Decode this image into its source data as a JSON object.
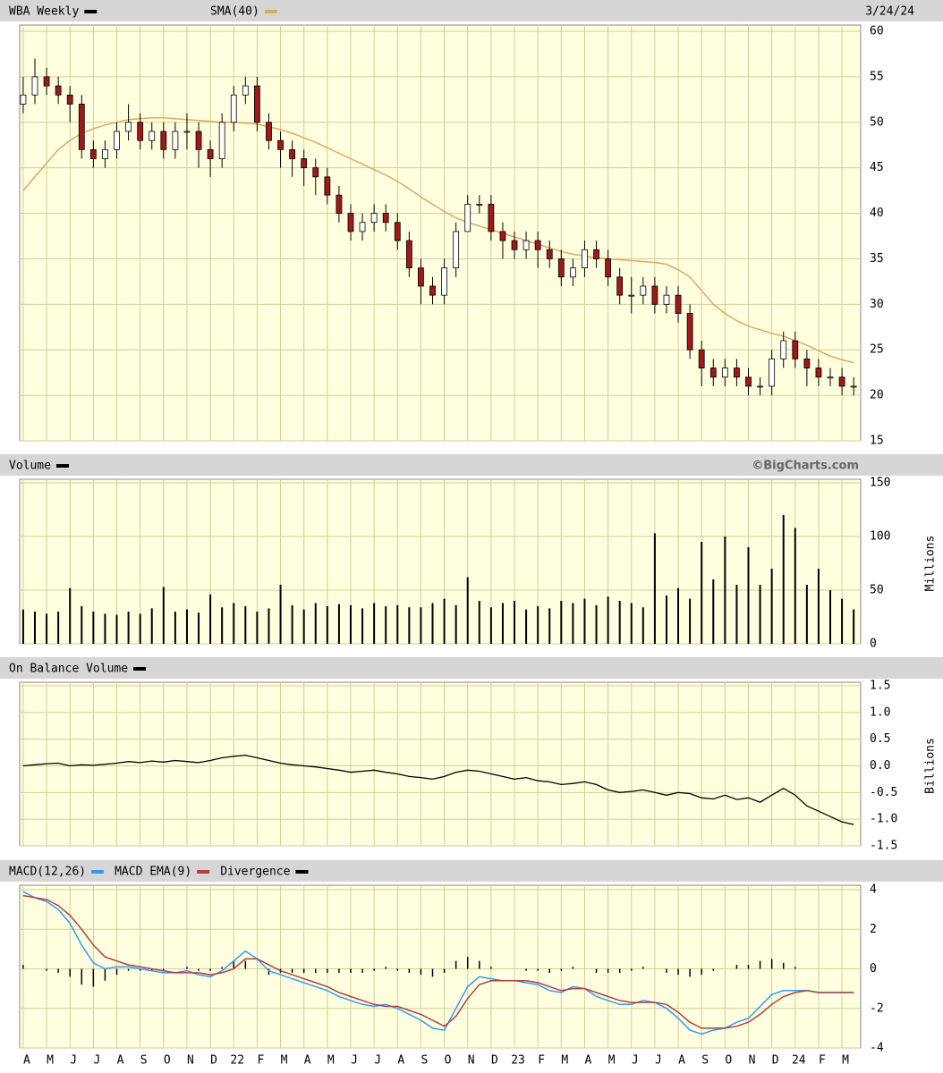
{
  "chart_data": [
    {
      "type": "candlestick",
      "title": "WBA Weekly",
      "date": "3/24/24",
      "color": "#000000",
      "up_color": "#ffffff",
      "down_color": "#a01818",
      "open": [
        52,
        53,
        55,
        54,
        53,
        52,
        47,
        46,
        47,
        49,
        50,
        48,
        49,
        47,
        49,
        49,
        47,
        46,
        50,
        53,
        54,
        50,
        48,
        47,
        46,
        45,
        44,
        42,
        40,
        38,
        39,
        40,
        39,
        37,
        34,
        32,
        31,
        34,
        38,
        41,
        41,
        38,
        37,
        36,
        37,
        36,
        35,
        33,
        34,
        36,
        35,
        33,
        31,
        31,
        32,
        30,
        31,
        29,
        25,
        23,
        22,
        23,
        22,
        21,
        21,
        24,
        26,
        24,
        23,
        22,
        22,
        21
      ],
      "high": [
        55,
        57,
        56,
        55,
        54,
        53,
        48,
        48,
        50,
        52,
        51,
        50,
        50,
        50,
        51,
        50,
        48,
        51,
        54,
        55,
        55,
        51,
        49,
        48,
        47,
        46,
        45,
        43,
        41,
        40,
        41,
        41,
        40,
        38,
        35,
        33,
        35,
        39,
        42,
        42,
        42,
        39,
        38,
        38,
        38,
        37,
        36,
        35,
        37,
        37,
        36,
        34,
        33,
        33,
        33,
        32,
        32,
        30,
        26,
        24,
        24,
        24,
        23,
        22,
        25,
        27,
        27,
        25,
        24,
        23,
        23,
        22
      ],
      "low": [
        51,
        52,
        53,
        52,
        50,
        46,
        45,
        45,
        46,
        48,
        47,
        47,
        46,
        46,
        47,
        45,
        44,
        45,
        49,
        52,
        49,
        47,
        45,
        44,
        43,
        42,
        41,
        39,
        37,
        37,
        38,
        38,
        36,
        33,
        30,
        30,
        30,
        33,
        38,
        40,
        37,
        35,
        35,
        35,
        34,
        34,
        32,
        32,
        33,
        34,
        32,
        30,
        29,
        30,
        29,
        29,
        28,
        24,
        21,
        21,
        21,
        21,
        20,
        20,
        20,
        23,
        23,
        21,
        21,
        21,
        20,
        20
      ],
      "close": [
        53,
        55,
        54,
        53,
        52,
        47,
        46,
        47,
        49,
        50,
        48,
        49,
        47,
        49,
        49,
        47,
        46,
        50,
        53,
        54,
        50,
        48,
        47,
        46,
        45,
        44,
        42,
        40,
        38,
        39,
        40,
        39,
        37,
        34,
        32,
        31,
        34,
        38,
        41,
        41,
        38,
        37,
        36,
        37,
        36,
        35,
        33,
        34,
        36,
        35,
        33,
        31,
        31,
        32,
        30,
        31,
        29,
        25,
        23,
        22,
        23,
        22,
        21,
        21,
        24,
        26,
        24,
        23,
        22,
        22,
        21,
        21
      ],
      "overlay": {
        "name": "SMA(40)",
        "color": "#e0a860",
        "values": [
          42.5,
          44,
          45.5,
          47,
          48,
          48.8,
          49.3,
          49.7,
          50,
          50.3,
          50.4,
          50.5,
          50.5,
          50.4,
          50.3,
          50.2,
          50.1,
          50,
          50,
          49.9,
          49.8,
          49.5,
          49.2,
          48.8,
          48.3,
          47.8,
          47.2,
          46.6,
          46,
          45.4,
          44.8,
          44.2,
          43.5,
          42.7,
          41.8,
          41,
          40.2,
          39.5,
          39,
          38.6,
          38.2,
          37.8,
          37.4,
          37,
          36.6,
          36.2,
          35.8,
          35.5,
          35.3,
          35.1,
          35,
          34.9,
          34.8,
          34.7,
          34.6,
          34.4,
          33.8,
          33,
          31.5,
          30,
          29,
          28.2,
          27.6,
          27.2,
          26.8,
          26.5,
          26,
          25.5,
          24.9,
          24.3,
          23.9,
          23.6
        ]
      },
      "ylim": [
        15,
        60
      ],
      "yticks": [
        15,
        20,
        25,
        30,
        35,
        40,
        45,
        50,
        55,
        60
      ],
      "grid": true
    },
    {
      "type": "bar",
      "title": "Volume",
      "source": "©BigCharts.com",
      "y_label": "Millions",
      "color": "#000000",
      "values": [
        32,
        30,
        28,
        30,
        52,
        35,
        30,
        28,
        27,
        30,
        28,
        33,
        53,
        30,
        32,
        29,
        46,
        34,
        38,
        35,
        30,
        33,
        55,
        36,
        32,
        38,
        35,
        37,
        36,
        33,
        38,
        35,
        36,
        34,
        34,
        38,
        42,
        36,
        62,
        40,
        34,
        38,
        40,
        32,
        35,
        33,
        40,
        38,
        42,
        36,
        44,
        40,
        38,
        34,
        103,
        45,
        52,
        42,
        95,
        60,
        100,
        55,
        90,
        55,
        70,
        120,
        108,
        55,
        70,
        50,
        42,
        32
      ],
      "ylim": [
        0,
        150
      ],
      "yticks": [
        0,
        50,
        100,
        150
      ],
      "grid": true
    },
    {
      "type": "line",
      "title": "On Balance Volume",
      "y_label": "Billions",
      "color": "#000000",
      "values": [
        0,
        0.02,
        0.04,
        0.05,
        0,
        0.02,
        0.01,
        0.03,
        0.05,
        0.08,
        0.06,
        0.09,
        0.07,
        0.1,
        0.08,
        0.06,
        0.1,
        0.15,
        0.18,
        0.2,
        0.15,
        0.1,
        0.05,
        0.02,
        0,
        -0.02,
        -0.05,
        -0.08,
        -0.12,
        -0.1,
        -0.08,
        -0.12,
        -0.15,
        -0.2,
        -0.22,
        -0.25,
        -0.2,
        -0.12,
        -0.08,
        -0.1,
        -0.15,
        -0.2,
        -0.25,
        -0.22,
        -0.28,
        -0.3,
        -0.35,
        -0.33,
        -0.3,
        -0.35,
        -0.45,
        -0.5,
        -0.48,
        -0.45,
        -0.5,
        -0.55,
        -0.5,
        -0.52,
        -0.6,
        -0.62,
        -0.55,
        -0.63,
        -0.6,
        -0.68,
        -0.55,
        -0.42,
        -0.55,
        -0.75,
        -0.85,
        -0.95,
        -1.05,
        -1.1
      ],
      "ylim": [
        -1.5,
        1.5
      ],
      "yticks": [
        -1.5,
        {
          "value": -1,
          "label": "-1.0"
        },
        -0.5,
        {
          "value": 0,
          "label": "0.0"
        },
        0.5,
        {
          "value": 1,
          "label": "1.0"
        },
        1.5
      ],
      "grid": true
    },
    {
      "type": "macd",
      "series": [
        {
          "name": "MACD(12,26)",
          "color": "#3399ff",
          "kind": "line",
          "values": [
            3.9,
            3.6,
            3.4,
            3.0,
            2.3,
            1.2,
            0.3,
            0.0,
            0.1,
            0.1,
            0.0,
            -0.1,
            -0.2,
            -0.2,
            -0.1,
            -0.3,
            -0.4,
            -0.1,
            0.4,
            0.9,
            0.5,
            -0.1,
            -0.3,
            -0.5,
            -0.7,
            -0.9,
            -1.1,
            -1.4,
            -1.6,
            -1.8,
            -1.9,
            -1.8,
            -2.0,
            -2.3,
            -2.6,
            -3.0,
            -3.1,
            -2.0,
            -0.9,
            -0.4,
            -0.5,
            -0.6,
            -0.6,
            -0.7,
            -0.8,
            -1.1,
            -1.2,
            -0.9,
            -1.0,
            -1.4,
            -1.6,
            -1.8,
            -1.8,
            -1.6,
            -1.7,
            -2.0,
            -2.5,
            -3.1,
            -3.3,
            -3.1,
            -3.0,
            -2.7,
            -2.5,
            -1.9,
            -1.3,
            -1.1,
            -1.1,
            -1.1,
            -1.2,
            -1.2,
            -1.2,
            -1.2
          ]
        },
        {
          "name": "MACD EMA(9)",
          "color": "#b04040",
          "kind": "line",
          "values": [
            3.7,
            3.6,
            3.5,
            3.2,
            2.7,
            2.0,
            1.2,
            0.6,
            0.4,
            0.2,
            0.1,
            0.0,
            -0.1,
            -0.2,
            -0.2,
            -0.2,
            -0.3,
            -0.2,
            0.0,
            0.5,
            0.5,
            0.2,
            -0.1,
            -0.3,
            -0.5,
            -0.7,
            -0.9,
            -1.2,
            -1.4,
            -1.6,
            -1.8,
            -1.9,
            -1.9,
            -2.1,
            -2.3,
            -2.6,
            -2.9,
            -2.4,
            -1.5,
            -0.8,
            -0.6,
            -0.6,
            -0.6,
            -0.6,
            -0.7,
            -0.9,
            -1.1,
            -1.0,
            -1.0,
            -1.2,
            -1.4,
            -1.6,
            -1.7,
            -1.7,
            -1.7,
            -1.8,
            -2.2,
            -2.7,
            -3.0,
            -3.0,
            -3.0,
            -2.9,
            -2.7,
            -2.3,
            -1.8,
            -1.4,
            -1.2,
            -1.1,
            -1.2,
            -1.2,
            -1.2,
            -1.2
          ]
        },
        {
          "name": "Divergence",
          "color": "#000000",
          "kind": "bar",
          "values": [
            0.2,
            0.0,
            -0.1,
            -0.2,
            -0.4,
            -0.8,
            -0.9,
            -0.6,
            -0.3,
            -0.1,
            -0.1,
            -0.1,
            -0.1,
            0.0,
            0.1,
            -0.1,
            -0.1,
            0.1,
            0.4,
            0.4,
            0.0,
            -0.3,
            -0.2,
            -0.2,
            -0.2,
            -0.2,
            -0.2,
            -0.2,
            -0.2,
            -0.2,
            -0.1,
            0.1,
            -0.1,
            -0.2,
            -0.3,
            -0.4,
            -0.2,
            0.4,
            0.6,
            0.4,
            0.1,
            0.0,
            0.0,
            -0.1,
            -0.1,
            -0.2,
            -0.1,
            0.1,
            0.0,
            -0.2,
            -0.2,
            -0.2,
            -0.1,
            0.1,
            0.0,
            -0.2,
            -0.3,
            -0.4,
            -0.3,
            -0.1,
            0.0,
            0.2,
            0.2,
            0.4,
            0.5,
            0.3,
            0.1,
            0.0,
            0.0,
            0.0,
            0.0,
            0.0
          ]
        }
      ],
      "ylim": [
        -4,
        4
      ],
      "yticks": [
        -4,
        -2,
        0,
        2,
        4
      ],
      "grid": true,
      "xlim": [
        -0.3,
        71.6
      ],
      "xticks": [
        {
          "value": 0,
          "label": "A"
        },
        {
          "value": 2,
          "label": "M"
        },
        {
          "value": 4,
          "label": "J"
        },
        {
          "value": 6,
          "label": "J"
        },
        {
          "value": 8,
          "label": "A"
        },
        {
          "value": 10,
          "label": "S"
        },
        {
          "value": 12,
          "label": "O"
        },
        {
          "value": 14,
          "label": "N"
        },
        {
          "value": 16,
          "label": "D"
        },
        {
          "value": 18,
          "label": "22"
        },
        {
          "value": 20,
          "label": "F"
        },
        {
          "value": 22,
          "label": "M"
        },
        {
          "value": 24,
          "label": "A"
        },
        {
          "value": 26,
          "label": "M"
        },
        {
          "value": 28,
          "label": "J"
        },
        {
          "value": 30,
          "label": "J"
        },
        {
          "value": 32,
          "label": "A"
        },
        {
          "value": 34,
          "label": "S"
        },
        {
          "value": 36,
          "label": "O"
        },
        {
          "value": 38,
          "label": "N"
        },
        {
          "value": 40,
          "label": "D"
        },
        {
          "value": 42,
          "label": "23"
        },
        {
          "value": 44,
          "label": "F"
        },
        {
          "value": 46,
          "label": "M"
        },
        {
          "value": 48,
          "label": "A"
        },
        {
          "value": 50,
          "label": "M"
        },
        {
          "value": 52,
          "label": "J"
        },
        {
          "value": 54,
          "label": "J"
        },
        {
          "value": 56,
          "label": "A"
        },
        {
          "value": 58,
          "label": "S"
        },
        {
          "value": 60,
          "label": "O"
        },
        {
          "value": 62,
          "label": "N"
        },
        {
          "value": 64,
          "label": "D"
        },
        {
          "value": 66,
          "label": "24"
        },
        {
          "value": 68,
          "label": "F"
        },
        {
          "value": 70,
          "label": "M"
        }
      ]
    }
  ]
}
